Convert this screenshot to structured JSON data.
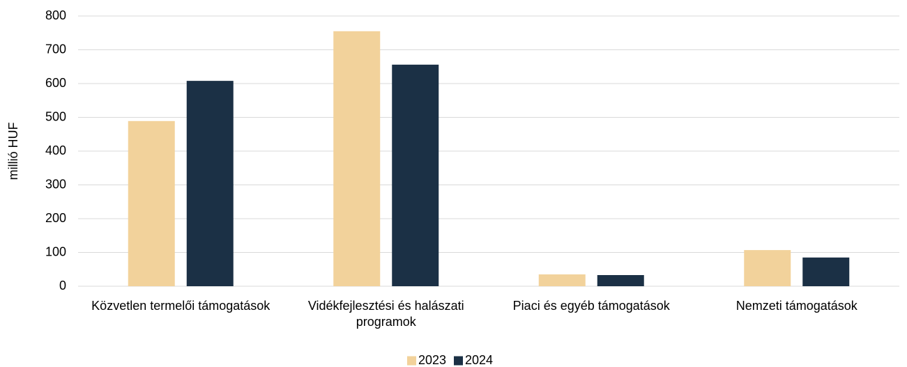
{
  "chart_data": {
    "type": "bar",
    "ylabel": "millió HUF",
    "categories": [
      "Közvetlen termelői támogatások",
      "Vidékfejlesztési és halászati programok",
      "Piaci és egyéb támogatások",
      "Nemzeti támogatások"
    ],
    "series": [
      {
        "name": "2023",
        "color": "#f2d29b",
        "values": [
          489,
          755,
          35,
          107
        ]
      },
      {
        "name": "2024",
        "color": "#1b3045",
        "values": [
          608,
          656,
          33,
          85
        ]
      }
    ],
    "ylim": [
      0,
      800
    ],
    "yticks": [
      0,
      100,
      200,
      300,
      400,
      500,
      600,
      700,
      800
    ],
    "grid": true,
    "legend": "bottom"
  }
}
